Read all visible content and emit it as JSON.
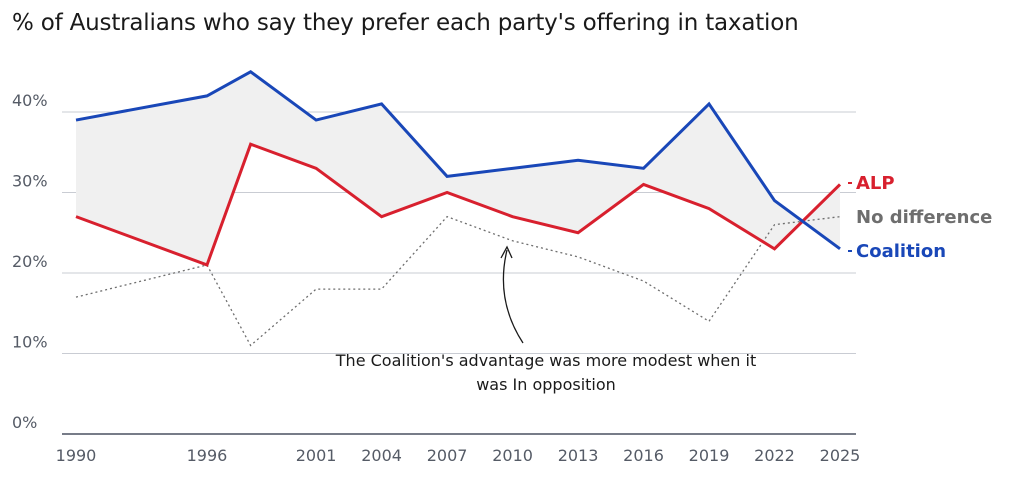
{
  "chart_data": {
    "type": "line",
    "title": "% of Australians who say they prefer each party's offering in taxation",
    "xlabel": "",
    "ylabel": "",
    "ylim": [
      0,
      45
    ],
    "y_ticks": [
      0,
      10,
      20,
      30,
      40
    ],
    "y_tick_labels": [
      "0%",
      "10%",
      "20%",
      "30%",
      "40%"
    ],
    "x_tick_labels": [
      "1990",
      "1996",
      "2001",
      "2004",
      "2007",
      "2010",
      "2013",
      "2016",
      "2019",
      "2022",
      "2025"
    ],
    "x": [
      1990,
      1996,
      1998,
      2001,
      2004,
      2007,
      2010,
      2013,
      2016,
      2019,
      2022,
      2025
    ],
    "series": [
      {
        "name": "Coalition",
        "color": "#1947b8",
        "style": "solid",
        "values": [
          39,
          42,
          45,
          39,
          41,
          32,
          33,
          34,
          33,
          41,
          29,
          23
        ]
      },
      {
        "name": "ALP",
        "color": "#d8202e",
        "style": "solid",
        "values": [
          27,
          21,
          36,
          33,
          27,
          30,
          27,
          25,
          31,
          28,
          23,
          31
        ]
      },
      {
        "name": "No difference",
        "color": "#6e6e6e",
        "style": "dotted",
        "values": [
          17,
          21,
          11,
          18,
          18,
          27,
          24,
          22,
          19,
          14,
          26,
          27
        ]
      }
    ],
    "shading": {
      "between": [
        "Coalition",
        "ALP"
      ],
      "color": "#f0f0f0"
    },
    "annotation": {
      "line1": "The Coalition's advantage was more modest when it",
      "line2": "was In opposition"
    },
    "grid": true,
    "legend": "direct labels at right"
  }
}
